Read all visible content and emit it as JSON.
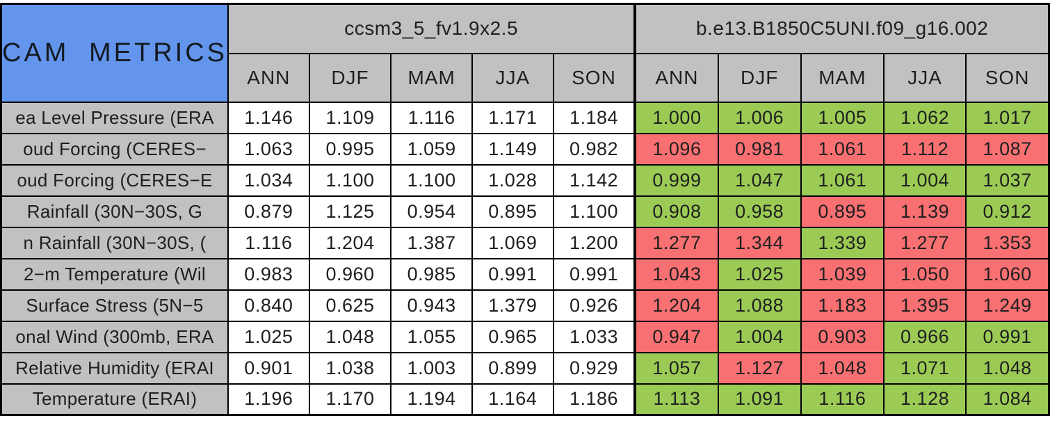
{
  "chart_data": {
    "type": "table",
    "title": "CAM METRICS",
    "column_groups": [
      "ccsm3_5_fv1.9x2.5",
      "b.e13.B1850C5UNI.f09_g16.002"
    ],
    "seasons": [
      "ANN",
      "DJF",
      "MAM",
      "JJA",
      "SON"
    ],
    "row_labels_visible": [
      "ea Level Pressure (ERA",
      "oud Forcing (CERES−",
      "oud Forcing (CERES−E",
      "Rainfall (30N−30S, G",
      "n Rainfall (30N−30S, (",
      "2−m Temperature (Wil",
      "Surface Stress (5N−5",
      "onal Wind (300mb, ERA",
      "Relative Humidity (ERAI",
      "Temperature (ERAI)"
    ],
    "model1_values": [
      [
        "1.146",
        "1.109",
        "1.116",
        "1.171",
        "1.184"
      ],
      [
        "1.063",
        "0.995",
        "1.059",
        "1.149",
        "0.982"
      ],
      [
        "1.034",
        "1.100",
        "1.100",
        "1.028",
        "1.142"
      ],
      [
        "0.879",
        "1.125",
        "0.954",
        "0.895",
        "1.100"
      ],
      [
        "1.116",
        "1.204",
        "1.387",
        "1.069",
        "1.200"
      ],
      [
        "0.983",
        "0.960",
        "0.985",
        "0.991",
        "0.991"
      ],
      [
        "0.840",
        "0.625",
        "0.943",
        "1.379",
        "0.926"
      ],
      [
        "1.025",
        "1.048",
        "1.055",
        "0.965",
        "1.033"
      ],
      [
        "0.901",
        "1.038",
        "1.003",
        "0.899",
        "0.929"
      ],
      [
        "1.196",
        "1.170",
        "1.194",
        "1.164",
        "1.186"
      ]
    ],
    "model2_values": [
      [
        "1.000",
        "1.006",
        "1.005",
        "1.062",
        "1.017"
      ],
      [
        "1.096",
        "0.981",
        "1.061",
        "1.112",
        "1.087"
      ],
      [
        "0.999",
        "1.047",
        "1.061",
        "1.004",
        "1.037"
      ],
      [
        "0.908",
        "0.958",
        "0.895",
        "1.139",
        "0.912"
      ],
      [
        "1.277",
        "1.344",
        "1.339",
        "1.277",
        "1.353"
      ],
      [
        "1.043",
        "1.025",
        "1.039",
        "1.050",
        "1.060"
      ],
      [
        "1.204",
        "1.088",
        "1.183",
        "1.395",
        "1.249"
      ],
      [
        "0.947",
        "1.004",
        "0.903",
        "0.966",
        "0.991"
      ],
      [
        "1.057",
        "1.127",
        "1.048",
        "1.071",
        "1.048"
      ],
      [
        "1.113",
        "1.091",
        "1.116",
        "1.128",
        "1.084"
      ]
    ],
    "model2_cell_colors": [
      [
        "green",
        "green",
        "green",
        "green",
        "green"
      ],
      [
        "red",
        "red",
        "red",
        "red",
        "red"
      ],
      [
        "green",
        "green",
        "green",
        "green",
        "green"
      ],
      [
        "green",
        "green",
        "red",
        "red",
        "green"
      ],
      [
        "red",
        "red",
        "green",
        "red",
        "red"
      ],
      [
        "red",
        "green",
        "red",
        "red",
        "red"
      ],
      [
        "red",
        "green",
        "red",
        "red",
        "red"
      ],
      [
        "red",
        "green",
        "red",
        "green",
        "green"
      ],
      [
        "green",
        "red",
        "red",
        "green",
        "green"
      ],
      [
        "green",
        "green",
        "green",
        "green",
        "green"
      ]
    ],
    "layout_hints": {
      "grid": true,
      "legend_position": "none"
    },
    "status_colors": {
      "green": "#9BCB55",
      "red": "#F97072",
      "header_gray": "#C1C1C1",
      "corner_blue": "#6495ED"
    }
  }
}
